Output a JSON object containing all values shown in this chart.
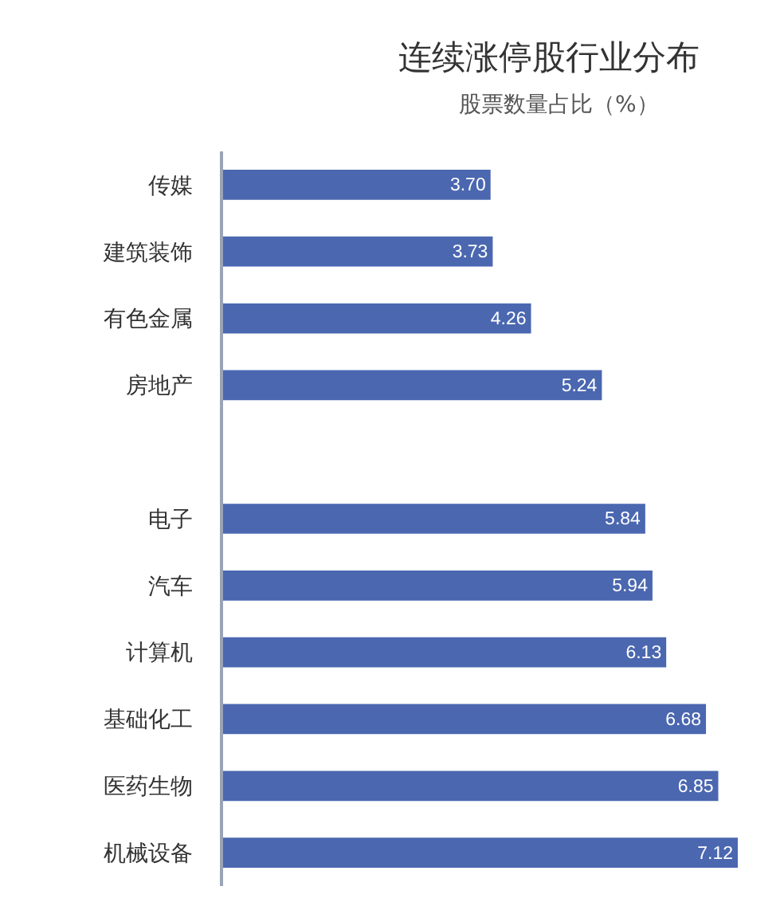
{
  "chart_data": {
    "type": "bar",
    "orientation": "horizontal",
    "title": "连续涨停股行业分布",
    "subtitle": "股票数量占比（%）",
    "categories": [
      "传媒",
      "建筑装饰",
      "有色金属",
      "房地产",
      null,
      "电子",
      "汽车",
      "计算机",
      "基础化工",
      "医药生物",
      "机械设备"
    ],
    "values": [
      3.7,
      3.73,
      4.26,
      5.24,
      null,
      5.84,
      5.94,
      6.13,
      6.68,
      6.85,
      7.12
    ],
    "value_labels": [
      "3.70",
      "3.73",
      "4.26",
      "5.24",
      null,
      "5.84",
      "5.94",
      "6.13",
      "6.68",
      "6.85",
      "7.12"
    ],
    "color": "#4a67b0",
    "grid": false,
    "tick_labels": "y"
  }
}
